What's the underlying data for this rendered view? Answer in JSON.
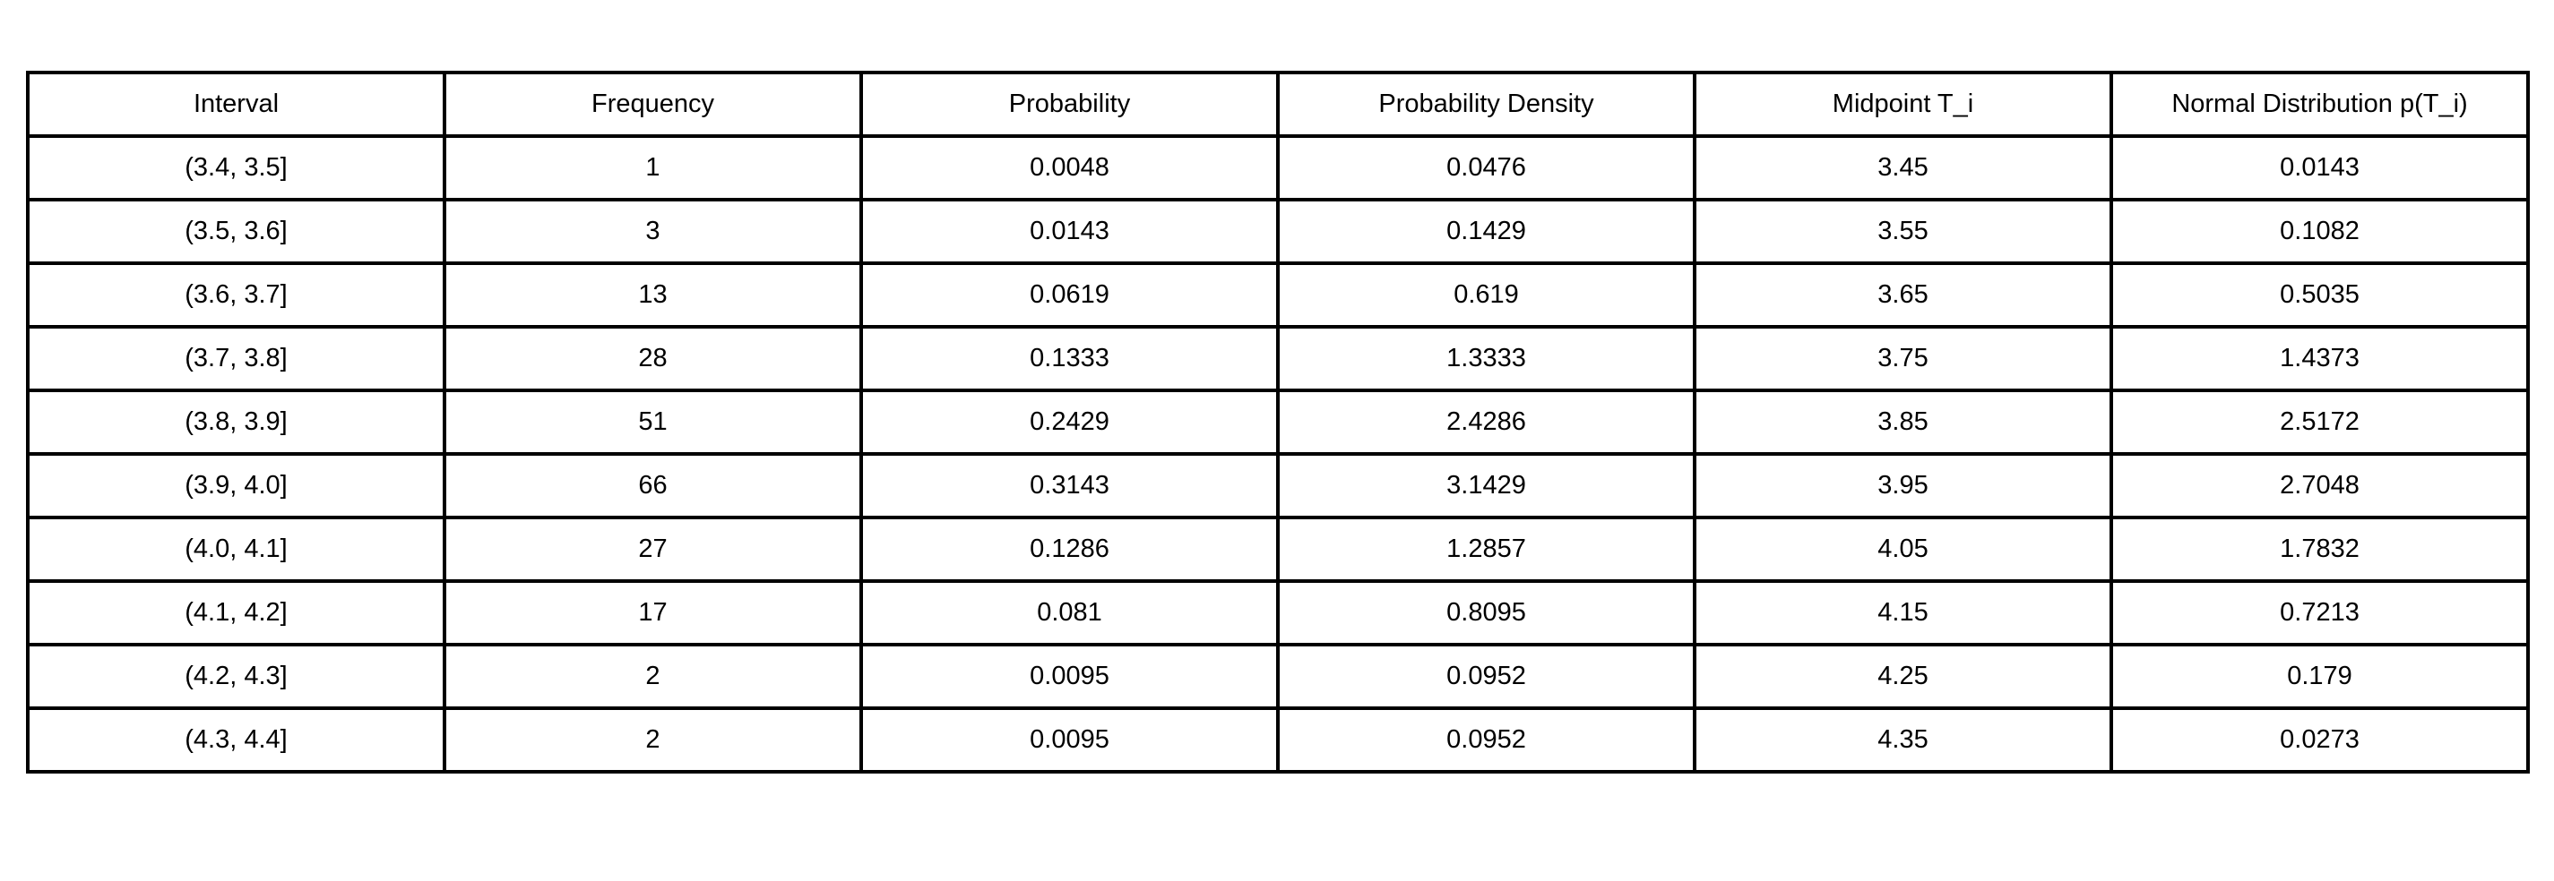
{
  "chart_data": {
    "type": "table",
    "columns": [
      "Interval",
      "Frequency",
      "Probability",
      "Probability Density",
      "Midpoint T_i",
      "Normal Distribution p(T_i)"
    ],
    "rows": [
      [
        "(3.4, 3.5]",
        "1",
        "0.0048",
        "0.0476",
        "3.45",
        "0.0143"
      ],
      [
        "(3.5, 3.6]",
        "3",
        "0.0143",
        "0.1429",
        "3.55",
        "0.1082"
      ],
      [
        "(3.6, 3.7]",
        "13",
        "0.0619",
        "0.619",
        "3.65",
        "0.5035"
      ],
      [
        "(3.7, 3.8]",
        "28",
        "0.1333",
        "1.3333",
        "3.75",
        "1.4373"
      ],
      [
        "(3.8, 3.9]",
        "51",
        "0.2429",
        "2.4286",
        "3.85",
        "2.5172"
      ],
      [
        "(3.9, 4.0]",
        "66",
        "0.3143",
        "3.1429",
        "3.95",
        "2.7048"
      ],
      [
        "(4.0, 4.1]",
        "27",
        "0.1286",
        "1.2857",
        "4.05",
        "1.7832"
      ],
      [
        "(4.1, 4.2]",
        "17",
        "0.081",
        "0.8095",
        "4.15",
        "0.7213"
      ],
      [
        "(4.2, 4.3]",
        "2",
        "0.0095",
        "0.0952",
        "4.25",
        "0.179"
      ],
      [
        "(4.3, 4.4]",
        "2",
        "0.0095",
        "0.0952",
        "4.35",
        "0.0273"
      ]
    ]
  }
}
